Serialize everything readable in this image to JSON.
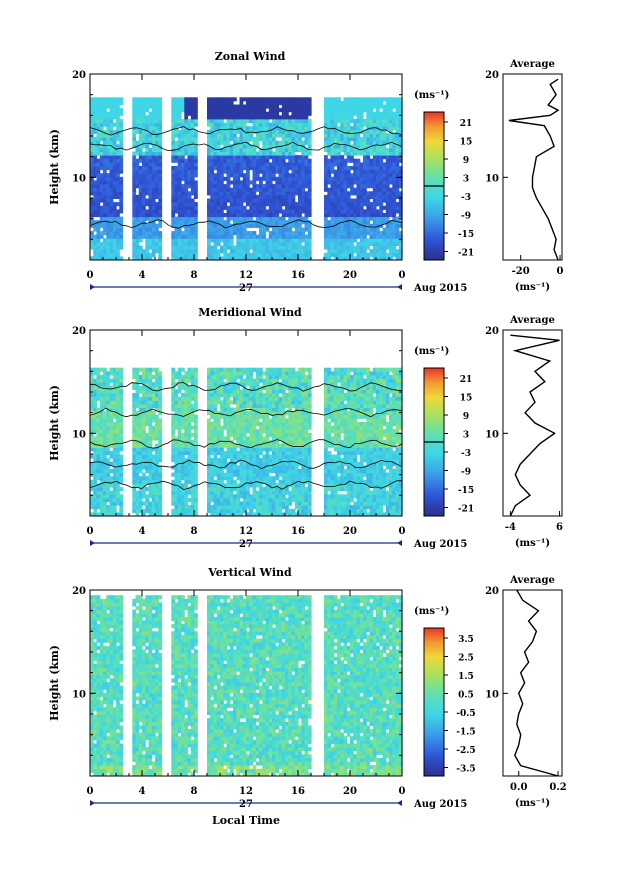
{
  "chart_data": [
    {
      "type": "heatmap",
      "title": "Zonal Wind",
      "ylabel": "Height (km)",
      "xlabel": "",
      "xticks": [
        "0",
        "4",
        "8",
        "12",
        "16",
        "20",
        "0"
      ],
      "xlim": [
        0,
        24
      ],
      "ylim": [
        2,
        20
      ],
      "ytick_labels": [
        "10",
        "20"
      ],
      "day_label": "27",
      "date_label": "Aug 2015",
      "colorbar": {
        "unit": "(ms⁻¹)",
        "ticks": [
          "21",
          "15",
          "9",
          "3",
          "-3",
          "-9",
          "-15",
          "-21"
        ],
        "range": [
          -24,
          24
        ],
        "zero_line": 0
      },
      "profile_panel": {
        "title": "Average",
        "xlabel": "(ms⁻¹)",
        "xticks": [
          "-20",
          "0"
        ],
        "xlim": [
          -29,
          1
        ],
        "heights_km": [
          2,
          3,
          4,
          5,
          6,
          7,
          8,
          9,
          10,
          11,
          12,
          13,
          14,
          15,
          15.5,
          16,
          16.5,
          17,
          18,
          19,
          19.5
        ],
        "values": [
          -1,
          -3,
          -2,
          -4,
          -6,
          -9,
          -12,
          -14,
          -14,
          -13,
          -12,
          -3,
          -5,
          -8,
          -26,
          -5,
          -1,
          -6,
          -2,
          -5,
          -1
        ]
      }
    },
    {
      "type": "heatmap",
      "title": "Meridional Wind",
      "ylabel": "Height (km)",
      "xlabel": "",
      "xticks": [
        "0",
        "4",
        "8",
        "12",
        "16",
        "20",
        "0"
      ],
      "xlim": [
        0,
        24
      ],
      "ylim": [
        2,
        20
      ],
      "ytick_labels": [
        "10",
        "20"
      ],
      "day_label": "27",
      "date_label": "Aug 2015",
      "colorbar": {
        "unit": "(ms⁻¹)",
        "ticks": [
          "21",
          "15",
          "9",
          "3",
          "-3",
          "-9",
          "-15",
          "-21"
        ],
        "range": [
          -24,
          24
        ],
        "zero_line": 0
      },
      "profile_panel": {
        "title": "Average",
        "xlabel": "(ms⁻¹)",
        "xticks": [
          "-4",
          "6"
        ],
        "xlim": [
          -5.5,
          6.5
        ],
        "heights_km": [
          2,
          3,
          4,
          5,
          6,
          7,
          8,
          9,
          10,
          11,
          12,
          13,
          14,
          15,
          16,
          17,
          18,
          19,
          19.5
        ],
        "values": [
          -4,
          -3,
          0,
          -2,
          -3,
          -2,
          0,
          2,
          5,
          1,
          -1,
          1,
          0,
          3,
          1,
          4,
          -3,
          6,
          -4
        ]
      }
    },
    {
      "type": "heatmap",
      "title": "Vertical Wind",
      "ylabel": "Height (km)",
      "xlabel": "Local Time",
      "xticks": [
        "0",
        "4",
        "8",
        "12",
        "16",
        "20",
        "0"
      ],
      "xlim": [
        0,
        24
      ],
      "ylim": [
        2,
        20
      ],
      "ytick_labels": [
        "10",
        "20"
      ],
      "day_label": "27",
      "date_label": "Aug 2015",
      "colorbar": {
        "unit": "(ms⁻¹)",
        "ticks": [
          "3.5",
          "2.5",
          "1.5",
          "0.5",
          "-0.5",
          "-1.5",
          "-2.5",
          "-3.5"
        ],
        "range": [
          -4,
          4
        ]
      },
      "profile_panel": {
        "title": "Average",
        "xlabel": "(ms⁻¹)",
        "xticks": [
          "0.0",
          "0.2"
        ],
        "xlim": [
          -0.08,
          0.22
        ],
        "heights_km": [
          2,
          3,
          4,
          5,
          6,
          7,
          8,
          9,
          10,
          11,
          12,
          13,
          14,
          15,
          16,
          17,
          18,
          19,
          20
        ],
        "values": [
          0.2,
          0.01,
          -0.02,
          0.0,
          0.01,
          -0.01,
          0.0,
          0.02,
          0.0,
          0.03,
          0.01,
          0.05,
          0.03,
          0.07,
          0.09,
          0.05,
          0.1,
          0.02,
          -0.01
        ]
      }
    }
  ]
}
